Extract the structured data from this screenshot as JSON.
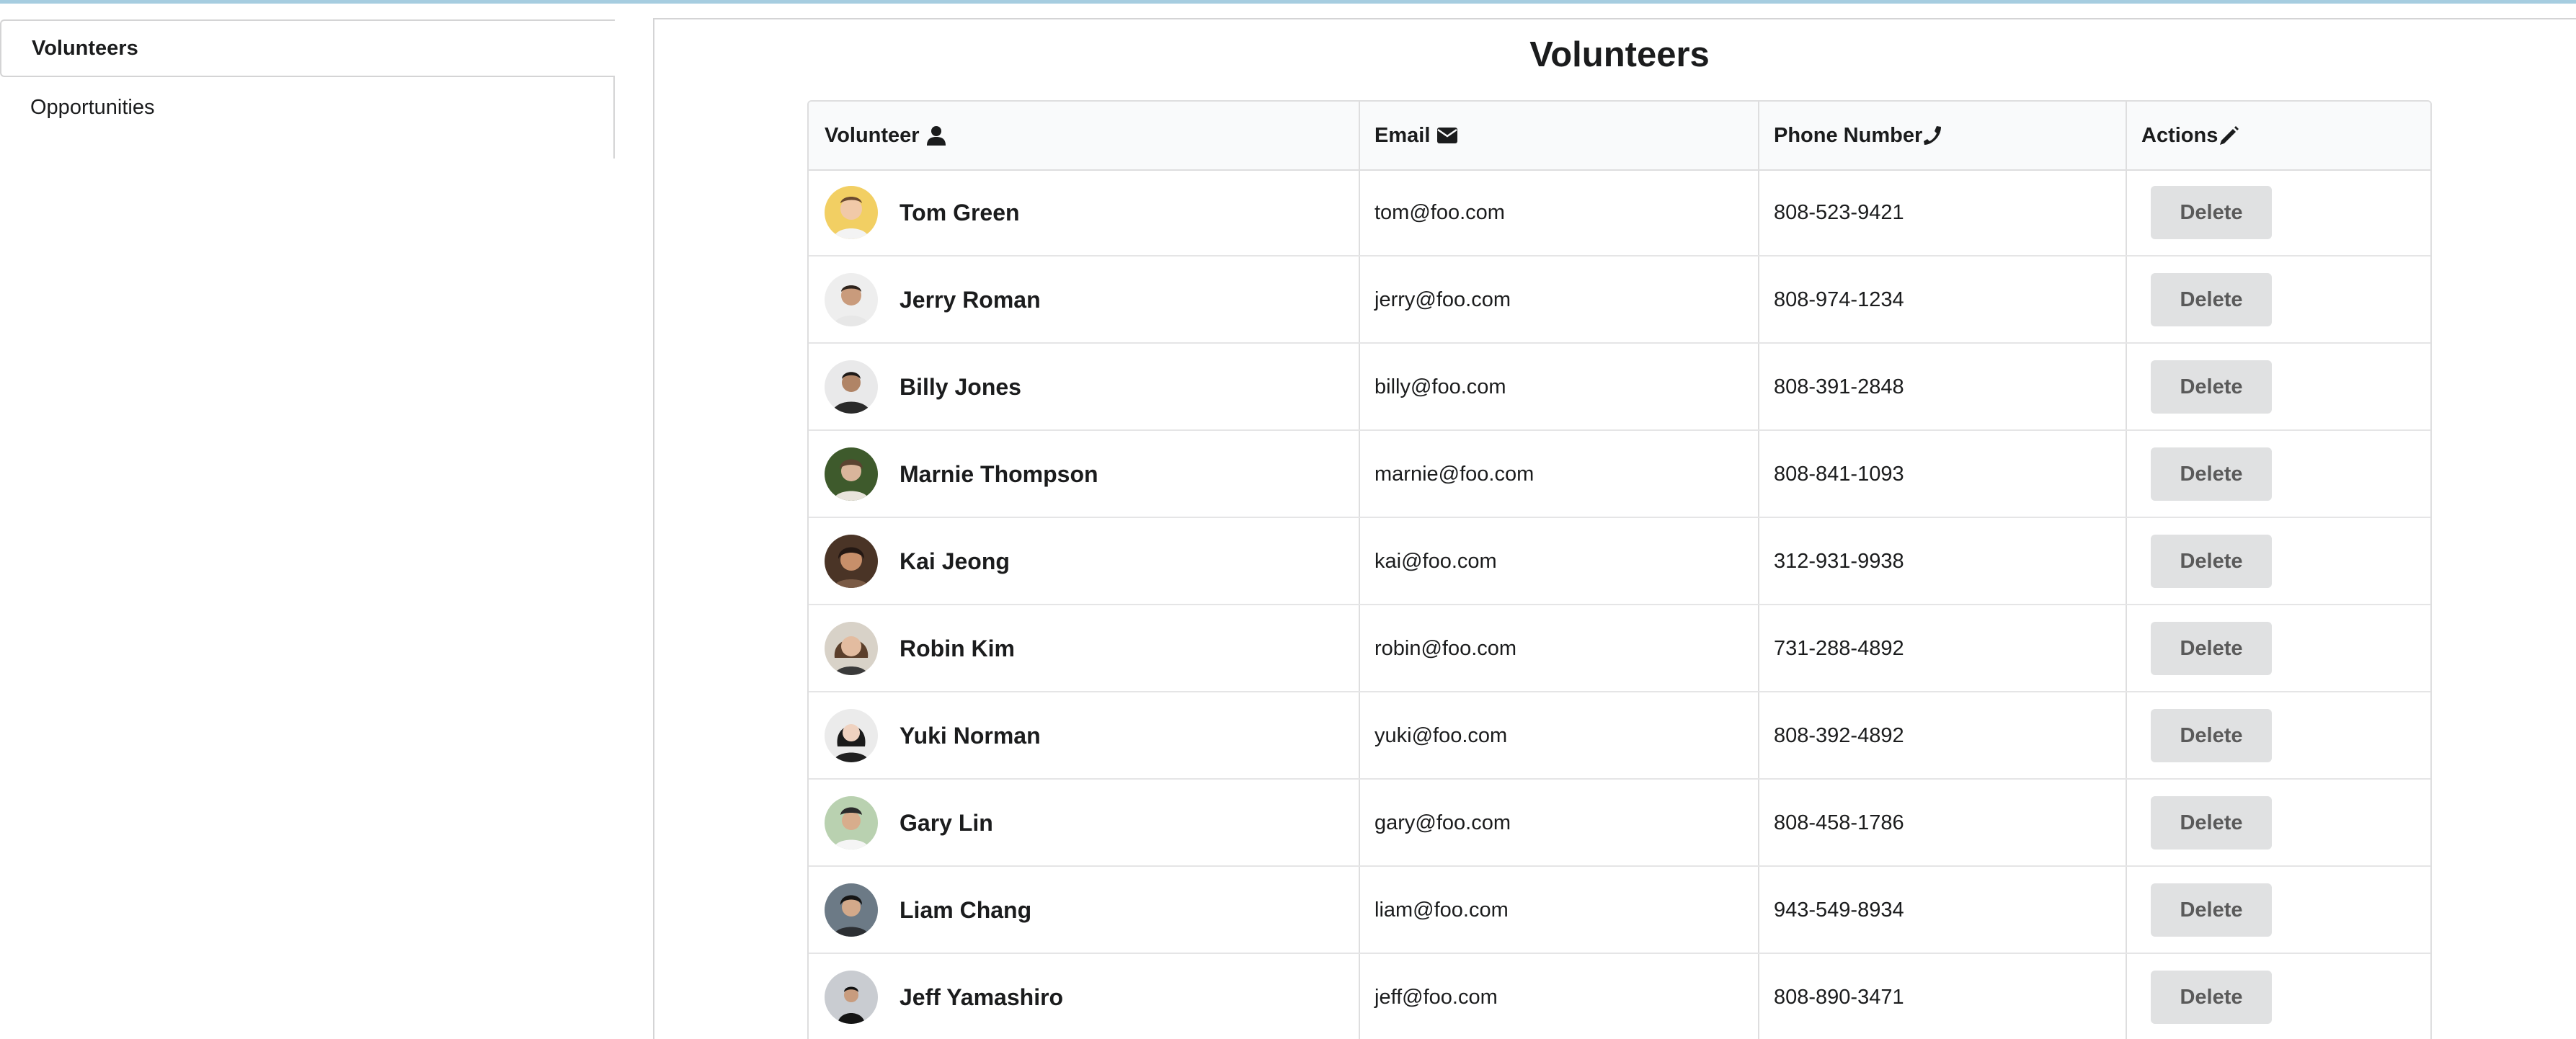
{
  "sidebar": {
    "items": [
      {
        "label": "Volunteers",
        "active": true
      },
      {
        "label": "Opportunities",
        "active": false
      }
    ]
  },
  "main": {
    "title": "Volunteers",
    "table": {
      "headers": {
        "volunteer": "Volunteer",
        "email": "Email",
        "phone": "Phone Number",
        "actions": "Actions"
      },
      "header_icons": {
        "volunteer": "user-icon",
        "email": "envelope-icon",
        "phone": "phone-icon",
        "actions": "pencil-icon"
      },
      "rows": [
        {
          "name": "Tom Green",
          "email": "tom@foo.com",
          "phone": "808-523-9421",
          "action": "Delete"
        },
        {
          "name": "Jerry Roman",
          "email": "jerry@foo.com",
          "phone": "808-974-1234",
          "action": "Delete"
        },
        {
          "name": "Billy Jones",
          "email": "billy@foo.com",
          "phone": "808-391-2848",
          "action": "Delete"
        },
        {
          "name": "Marnie Thompson",
          "email": "marnie@foo.com",
          "phone": "808-841-1093",
          "action": "Delete"
        },
        {
          "name": "Kai Jeong",
          "email": "kai@foo.com",
          "phone": "312-931-9938",
          "action": "Delete"
        },
        {
          "name": "Robin Kim",
          "email": "robin@foo.com",
          "phone": "731-288-4892",
          "action": "Delete"
        },
        {
          "name": "Yuki Norman",
          "email": "yuki@foo.com",
          "phone": "808-392-4892",
          "action": "Delete"
        },
        {
          "name": "Gary Lin",
          "email": "gary@foo.com",
          "phone": "808-458-1786",
          "action": "Delete"
        },
        {
          "name": "Liam Chang",
          "email": "liam@foo.com",
          "phone": "943-549-8934",
          "action": "Delete"
        },
        {
          "name": "Jeff Yamashiro",
          "email": "jeff@foo.com",
          "phone": "808-890-3471",
          "action": "Delete"
        }
      ]
    }
  },
  "colors": {
    "top_strip": "#a6cde0",
    "border": "#d4d4d5",
    "header_bg": "#f9fafb",
    "button_bg": "#e0e1e2",
    "button_text": "#5a5a5a",
    "text": "#1b1c1d"
  }
}
